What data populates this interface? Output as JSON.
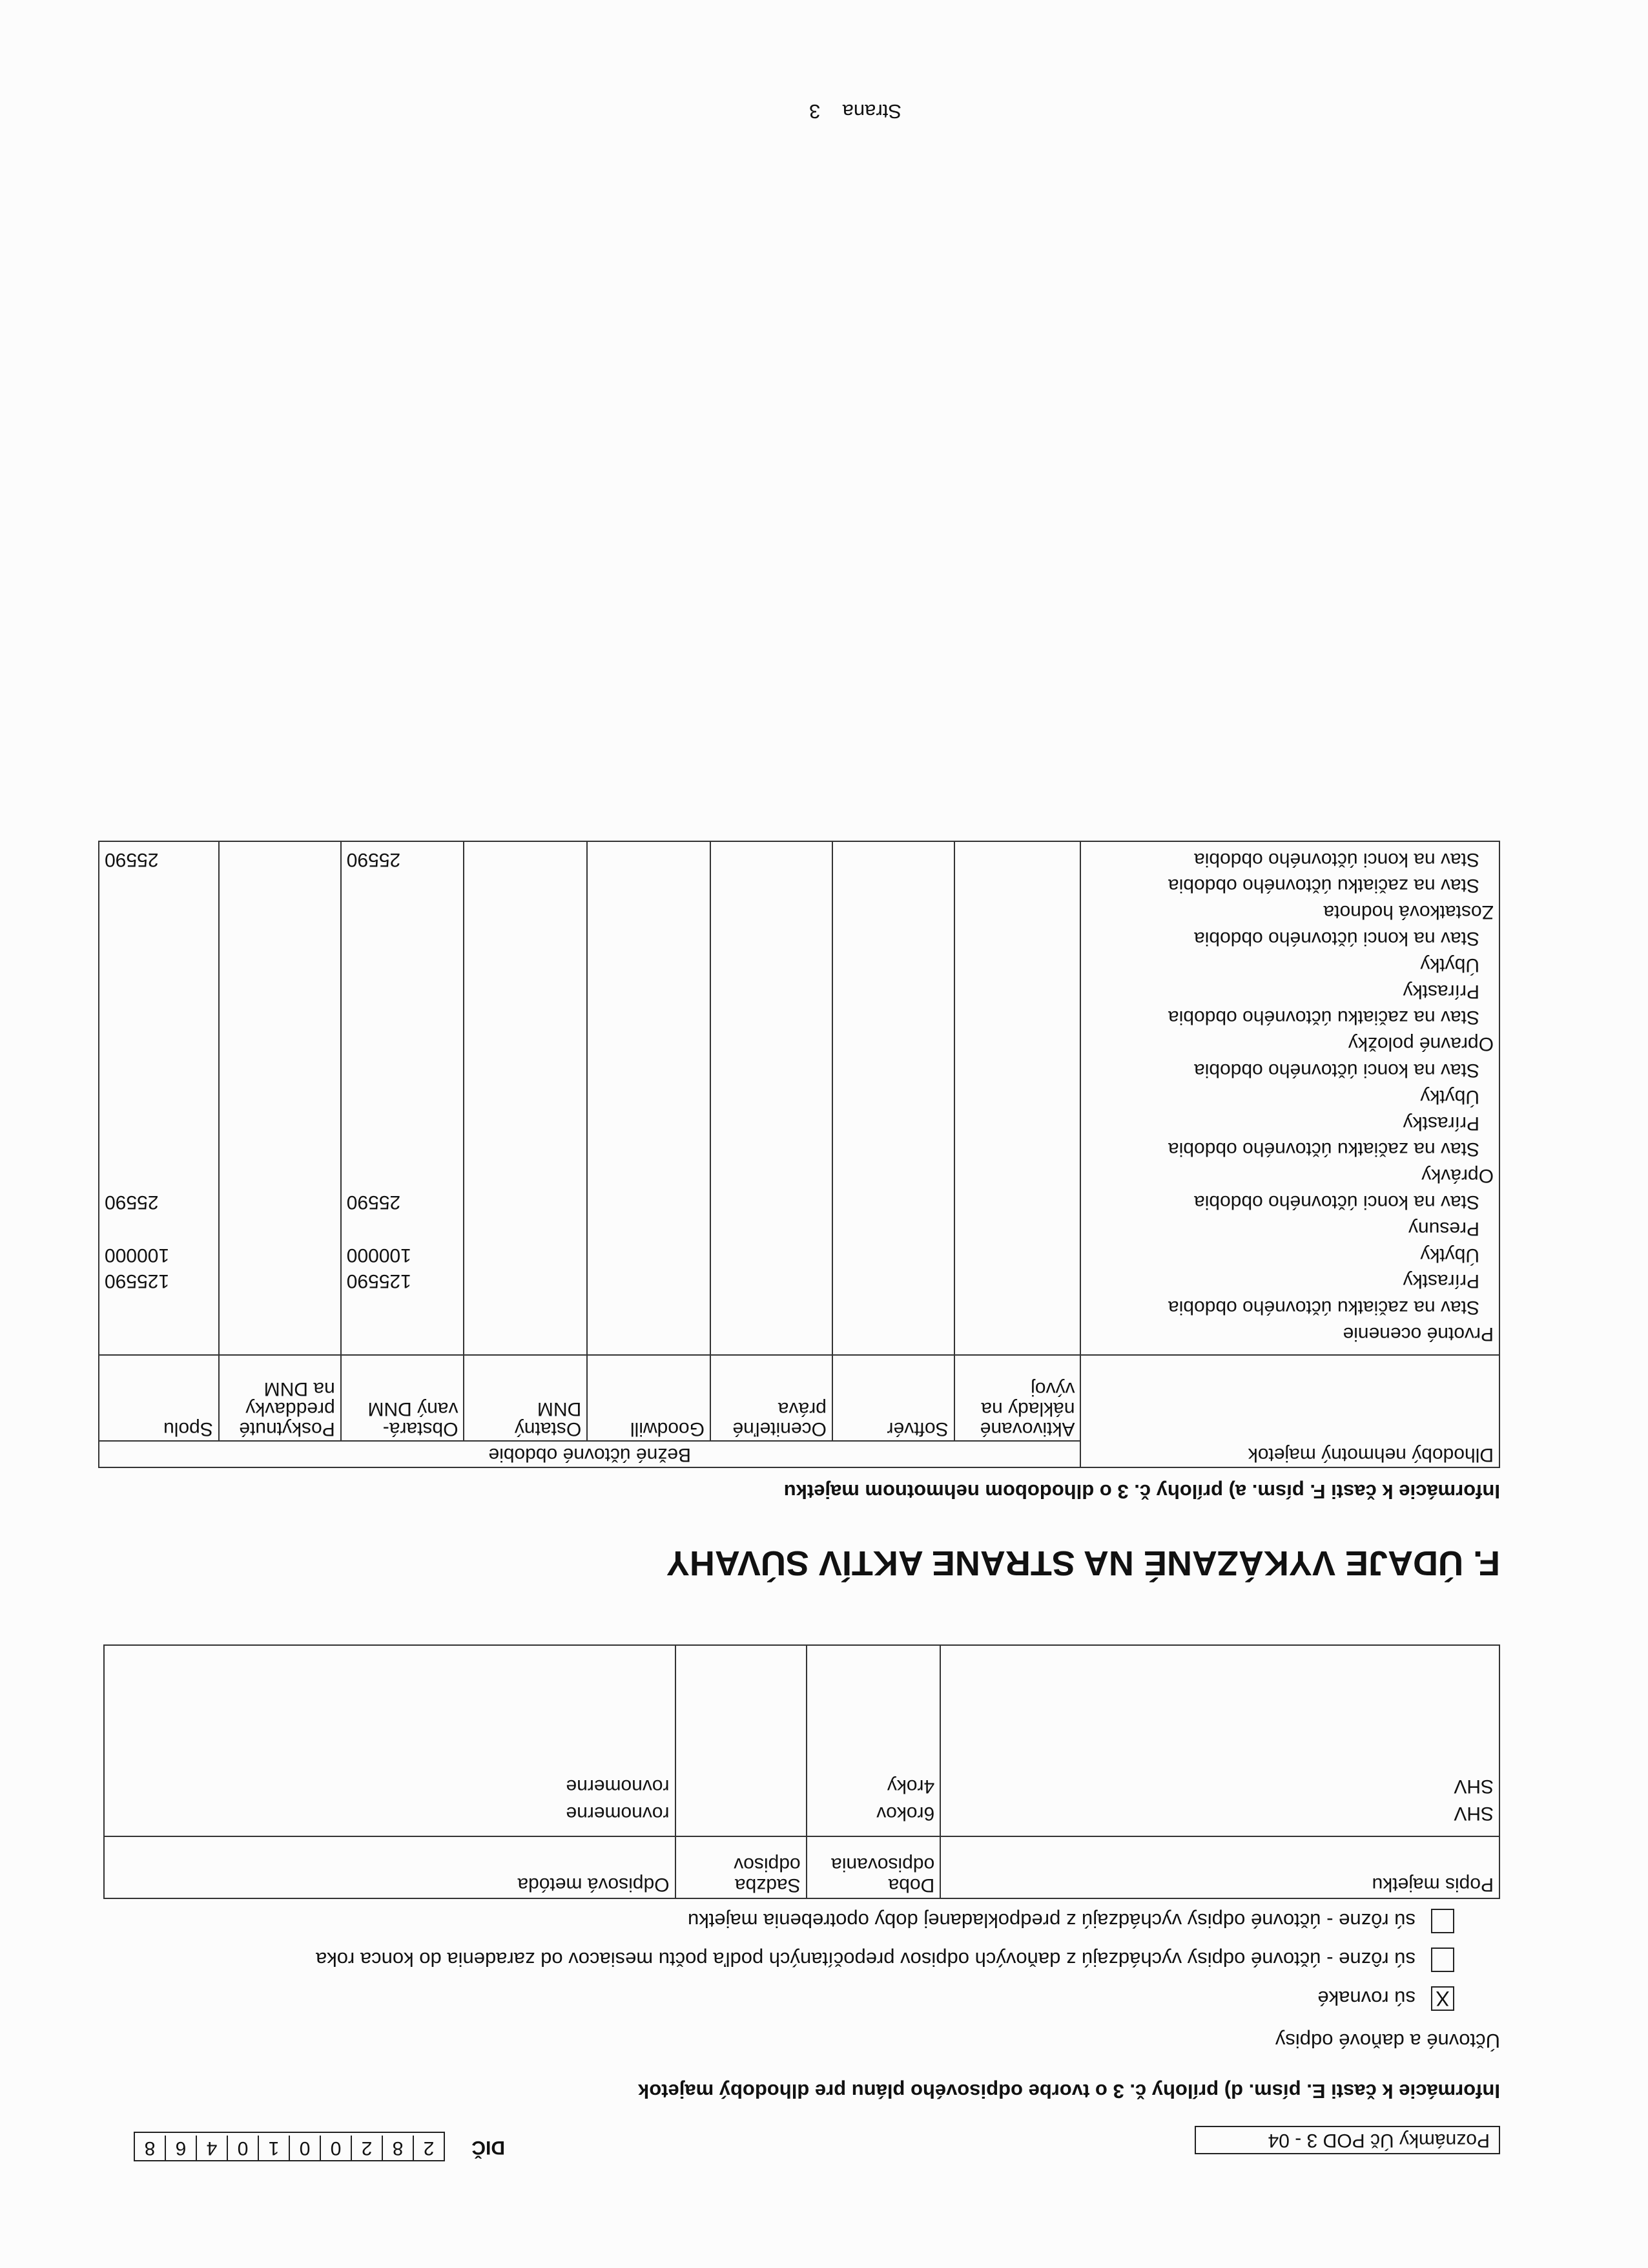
{
  "header": {
    "form_name": "Poznámky Úč POD 3 - 04",
    "dic_label": "DIČ",
    "dic_digits": [
      "2",
      "8",
      "2",
      "0",
      "0",
      "1",
      "0",
      "4",
      "6",
      "8"
    ]
  },
  "section_e": {
    "title": "Informácie k časti E. písm. d) prílohy č. 3 o tvorbe odpisového plánu pre dlhodobý majetok",
    "subtitle": "Účtovné  a daňové odpisy",
    "options": [
      {
        "label": "sú rovnaké",
        "checked": true,
        "mark": "X"
      },
      {
        "label": "sú rôzne - účtovné odpisy vychádzajú z daňových odpisov prepočítaných podľa počtu mesiacov od zaradenia do konca roka",
        "checked": false
      },
      {
        "label": "sú rôzne - účtovné odpisy vychádzajú z predpokladanej doby opotrebenia majetku",
        "checked": false
      }
    ],
    "table": {
      "headers": [
        "Popis majetku",
        "Doba odpisovania",
        "Sadzba odpisov",
        "Odpisová metóda"
      ],
      "rows": [
        [
          "SHV",
          "6rokov",
          "",
          "rovnomerne"
        ],
        [
          "SHV",
          "4roky",
          "",
          "rovnomerne"
        ]
      ]
    }
  },
  "section_f": {
    "heading": "F.   ÚDAJE VYKÁZANÉ NA STRANE AKTÍV SÚVAHY",
    "subtitle": "Informácie k časti F. písm. a) prílohy č. 3 o dlhodobom nehmotnom majetku",
    "table": {
      "row_header": "Dlhodobý nehmotný majetok",
      "period_header": "Bežné účtovné obdobie",
      "columns": [
        "Aktivované náklady na vývoj",
        "Softvér",
        "Oceniteľné práva",
        "Goodwill",
        "Ostatný DNM",
        "Obstará- vaný DNM",
        "Poskytnuté preddavky na DNM",
        "Spolu"
      ],
      "rows": [
        {
          "label": "Prvotné ocenenie",
          "indent": false,
          "values": [
            "",
            "",
            "",
            "",
            "",
            "",
            "",
            ""
          ]
        },
        {
          "label": "Stav na začiatku účtovného obdobia",
          "indent": true,
          "values": [
            "",
            "",
            "",
            "",
            "",
            "",
            "",
            ""
          ]
        },
        {
          "label": "Prírastky",
          "indent": true,
          "values": [
            "",
            "",
            "",
            "",
            "",
            "125590",
            "",
            "125590"
          ]
        },
        {
          "label": "Úbytky",
          "indent": true,
          "values": [
            "",
            "",
            "",
            "",
            "",
            "100000",
            "",
            "100000"
          ]
        },
        {
          "label": "Presuny",
          "indent": true,
          "values": [
            "",
            "",
            "",
            "",
            "",
            "",
            "",
            ""
          ]
        },
        {
          "label": "Stav na konci účtovného obdobia",
          "indent": true,
          "values": [
            "",
            "",
            "",
            "",
            "",
            "25590",
            "",
            "25590"
          ]
        },
        {
          "label": "Oprávky",
          "indent": false,
          "values": [
            "",
            "",
            "",
            "",
            "",
            "",
            "",
            ""
          ]
        },
        {
          "label": "Stav na začiatku účtovného obdobia",
          "indent": true,
          "values": [
            "",
            "",
            "",
            "",
            "",
            "",
            "",
            ""
          ]
        },
        {
          "label": "Prírastky",
          "indent": true,
          "values": [
            "",
            "",
            "",
            "",
            "",
            "",
            "",
            ""
          ]
        },
        {
          "label": "Úbytky",
          "indent": true,
          "values": [
            "",
            "",
            "",
            "",
            "",
            "",
            "",
            ""
          ]
        },
        {
          "label": "Stav na konci účtovného obdobia",
          "indent": true,
          "values": [
            "",
            "",
            "",
            "",
            "",
            "",
            "",
            ""
          ]
        },
        {
          "label": "Opravné položky",
          "indent": false,
          "values": [
            "",
            "",
            "",
            "",
            "",
            "",
            "",
            ""
          ]
        },
        {
          "label": "Stav na začiatku účtovného obdobia",
          "indent": true,
          "values": [
            "",
            "",
            "",
            "",
            "",
            "",
            "",
            ""
          ]
        },
        {
          "label": "Prírastky",
          "indent": true,
          "values": [
            "",
            "",
            "",
            "",
            "",
            "",
            "",
            ""
          ]
        },
        {
          "label": "Úbytky",
          "indent": true,
          "values": [
            "",
            "",
            "",
            "",
            "",
            "",
            "",
            ""
          ]
        },
        {
          "label": "Stav na konci účtovného obdobia",
          "indent": true,
          "values": [
            "",
            "",
            "",
            "",
            "",
            "",
            "",
            ""
          ]
        },
        {
          "label": "Zostatková hodnota",
          "indent": false,
          "values": [
            "",
            "",
            "",
            "",
            "",
            "",
            "",
            ""
          ]
        },
        {
          "label": "Stav na začiatku účtovného obdobia",
          "indent": true,
          "values": [
            "",
            "",
            "",
            "",
            "",
            "",
            "",
            ""
          ]
        },
        {
          "label": "Stav na konci účtovného obdobia",
          "indent": true,
          "values": [
            "",
            "",
            "",
            "",
            "",
            "25590",
            "",
            "25590"
          ]
        }
      ]
    }
  },
  "footer": {
    "page_label": "Strana",
    "page_number": "3"
  }
}
